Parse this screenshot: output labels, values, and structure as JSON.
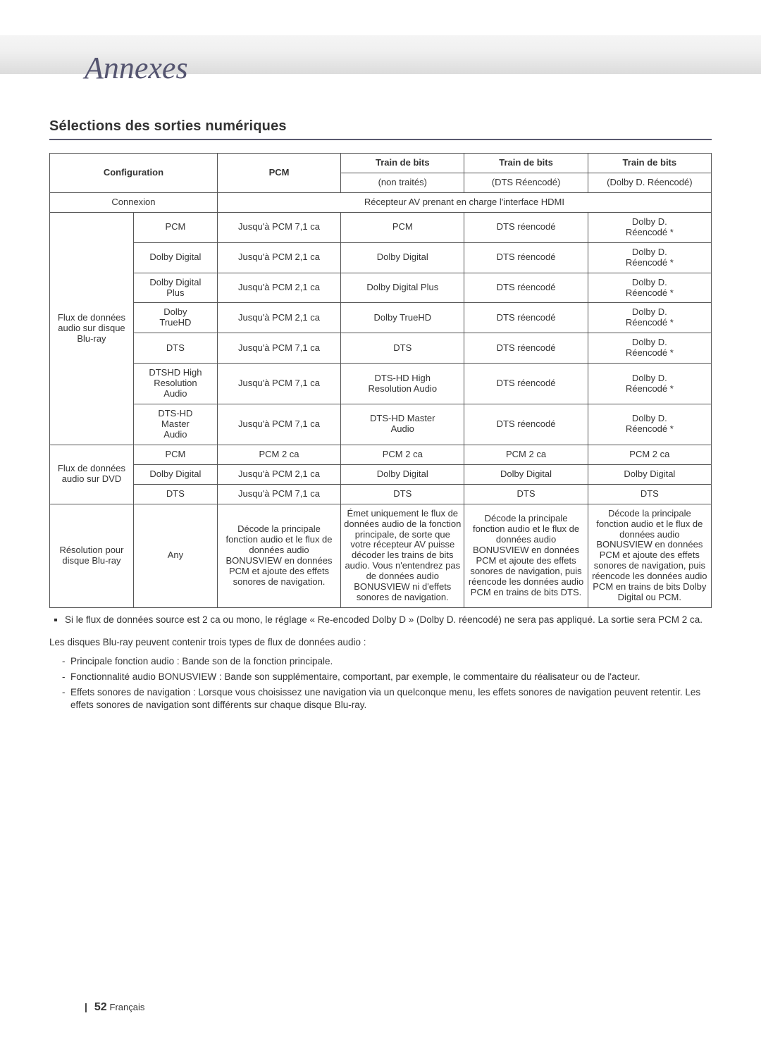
{
  "page": {
    "title": "Annexes",
    "section_title": "Sélections des sorties numériques",
    "footer_number": "52",
    "footer_lang": "Français"
  },
  "table": {
    "header": {
      "config": "Configuration",
      "pcm": "PCM",
      "bits_untreated_l1": "Train de bits",
      "bits_untreated_l2": "(non traités)",
      "bits_dts_l1": "Train de bits",
      "bits_dts_l2": "(DTS Réencodé)",
      "bits_dolby_l1": "Train de bits",
      "bits_dolby_l2": "(Dolby D. Réencodé)"
    },
    "connexion": {
      "label": "Connexion",
      "value": "Récepteur AV prenant en charge l'interface HDMI"
    },
    "bluray_group": "Flux de données audio sur disque Blu-ray",
    "bluray_rows": [
      {
        "fmt": "PCM",
        "pcm": "Jusqu'à PCM 7,1 ca",
        "bits": "PCM",
        "dts": "DTS réencodé",
        "dolby_l1": "Dolby D.",
        "dolby_l2": "Réencodé *"
      },
      {
        "fmt": "Dolby Digital",
        "pcm": "Jusqu'à PCM 2,1 ca",
        "bits": "Dolby Digital",
        "dts": "DTS réencodé",
        "dolby_l1": "Dolby D.",
        "dolby_l2": "Réencodé *"
      },
      {
        "fmt_l1": "Dolby Digital",
        "fmt_l2": "Plus",
        "pcm": "Jusqu'à PCM 2,1 ca",
        "bits": "Dolby Digital Plus",
        "dts": "DTS réencodé",
        "dolby_l1": "Dolby D.",
        "dolby_l2": "Réencodé *"
      },
      {
        "fmt_l1": "Dolby",
        "fmt_l2": "TrueHD",
        "pcm": "Jusqu'à PCM 2,1 ca",
        "bits": "Dolby TrueHD",
        "dts": "DTS réencodé",
        "dolby_l1": "Dolby D.",
        "dolby_l2": "Réencodé *"
      },
      {
        "fmt": "DTS",
        "pcm": "Jusqu'à PCM 7,1 ca",
        "bits": "DTS",
        "dts": "DTS réencodé",
        "dolby_l1": "Dolby D.",
        "dolby_l2": "Réencodé *"
      },
      {
        "fmt_l1": "DTSHD High",
        "fmt_l2": "Resolution",
        "fmt_l3": "Audio",
        "pcm": "Jusqu'à PCM 7,1 ca",
        "bits_l1": "DTS-HD High",
        "bits_l2": "Resolution Audio",
        "dts": "DTS réencodé",
        "dolby_l1": "Dolby D.",
        "dolby_l2": "Réencodé *"
      },
      {
        "fmt_l1": "DTS-HD",
        "fmt_l2": "Master",
        "fmt_l3": "Audio",
        "pcm": "Jusqu'à PCM 7,1 ca",
        "bits_l1": "DTS-HD Master",
        "bits_l2": "Audio",
        "dts": "DTS réencodé",
        "dolby_l1": "Dolby D.",
        "dolby_l2": "Réencodé *"
      }
    ],
    "dvd_group": "Flux de données audio sur DVD",
    "dvd_rows": [
      {
        "fmt": "PCM",
        "pcm": "PCM 2 ca",
        "bits": "PCM 2 ca",
        "dts": "PCM 2 ca",
        "dolby": "PCM 2 ca"
      },
      {
        "fmt": "Dolby Digital",
        "pcm": "Jusqu'à PCM 2,1 ca",
        "bits": "Dolby Digital",
        "dts": "Dolby Digital",
        "dolby": "Dolby Digital"
      },
      {
        "fmt": "DTS",
        "pcm": "Jusqu'à PCM 7,1 ca",
        "bits": "DTS",
        "dts": "DTS",
        "dolby": "DTS"
      }
    ],
    "resolution_row": {
      "label": "Résolution pour disque Blu-ray",
      "fmt": "Any",
      "pcm": "Décode la principale fonction audio et le flux de données audio BONUSVIEW en données PCM et ajoute des effets sonores de navigation.",
      "bits": "Émet uniquement le flux de données audio de la fonction principale, de sorte que votre récepteur AV puisse décoder les trains de bits audio. Vous n'entendrez pas de données audio BONUSVIEW ni d'effets sonores de navigation.",
      "dts": "Décode la principale fonction audio et le flux de données audio BONUSVIEW en données PCM et ajoute des effets sonores de navigation, puis réencode les données audio PCM en trains de bits DTS.",
      "dolby": "Décode la principale fonction audio et le flux de données audio BONUSVIEW en données PCM et ajoute des effets sonores de navigation, puis réencode les données audio PCM en trains de bits Dolby Digital ou PCM."
    }
  },
  "notes": {
    "bullet": "Si le flux de données source est 2 ca ou mono, le réglage « Re-encoded Dolby D » (Dolby D. réencodé) ne sera pas appliqué. La sortie sera PCM 2 ca.",
    "intro": "Les disques Blu-ray peuvent contenir trois types de flux de données audio :",
    "items": [
      "Principale fonction audio : Bande son de la fonction principale.",
      "Fonctionnalité audio BONUSVIEW : Bande son supplémentaire, comportant, par exemple, le commentaire du réalisateur ou de l'acteur.",
      "Effets sonores de navigation : Lorsque vous choisissez une navigation via un quelconque menu, les effets sonores de navigation peuvent retentir. Les effets sonores de navigation sont différents sur chaque disque Blu-ray."
    ]
  }
}
